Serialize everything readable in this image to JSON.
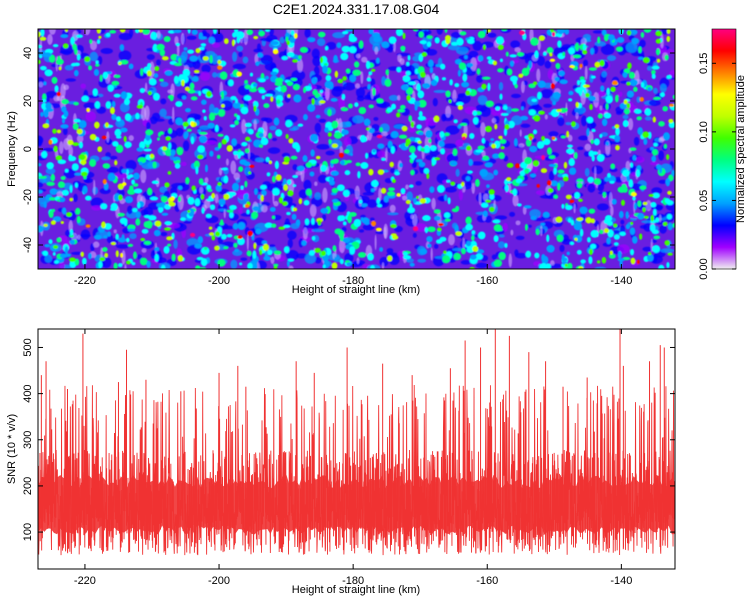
{
  "title": "C2E1.2024.331.17.08.G04",
  "chart_data": [
    {
      "type": "heatmap",
      "xlabel": "Height of straight line (km)",
      "ylabel": "Frequency (Hz)",
      "xlim": [
        -227,
        -132
      ],
      "ylim": [
        -50,
        50
      ],
      "x_ticks": [
        -220,
        -200,
        -180,
        -160,
        -140
      ],
      "y_ticks": [
        -40,
        -20,
        0,
        20,
        40
      ],
      "colorbar": {
        "label": "Normalized spectral amplitude",
        "range": [
          0.0,
          0.175
        ],
        "ticks": [
          0.0,
          0.05,
          0.1,
          0.15
        ],
        "tick_labels": [
          "0.00",
          "0.05",
          "0.10",
          "0.15"
        ],
        "colormap": [
          "#f0f0f0",
          "#a000ff",
          "#0000ff",
          "#00a0ff",
          "#00ffff",
          "#00ff80",
          "#40ff00",
          "#c0ff00",
          "#ffff00",
          "#ff8000",
          "#ff0000",
          "#ff0080"
        ]
      },
      "background_color": "#6a1ee0"
    },
    {
      "type": "line",
      "xlabel": "Height of straight line (km)",
      "ylabel": "SNR (10 * v/v)",
      "xlim": [
        -227,
        -132
      ],
      "ylim": [
        20,
        540
      ],
      "x_ticks": [
        -220,
        -200,
        -180,
        -160,
        -140
      ],
      "y_ticks": [
        100,
        200,
        300,
        400,
        500
      ],
      "color": "#f03232",
      "baseline": 150,
      "typical_range": [
        60,
        300
      ],
      "spikes": [
        {
          "x": -226.5,
          "y": 440
        },
        {
          "x": -225.8,
          "y": 470
        },
        {
          "x": -222.6,
          "y": 410
        },
        {
          "x": -220.3,
          "y": 530
        },
        {
          "x": -215.0,
          "y": 425
        },
        {
          "x": -213.8,
          "y": 495
        },
        {
          "x": -210.9,
          "y": 430
        },
        {
          "x": -205.7,
          "y": 405
        },
        {
          "x": -200.0,
          "y": 445
        },
        {
          "x": -197.2,
          "y": 460
        },
        {
          "x": -196.0,
          "y": 415
        },
        {
          "x": -188.5,
          "y": 470
        },
        {
          "x": -185.8,
          "y": 445
        },
        {
          "x": -180.9,
          "y": 500
        },
        {
          "x": -175.6,
          "y": 465
        },
        {
          "x": -171.2,
          "y": 440
        },
        {
          "x": -165.5,
          "y": 455
        },
        {
          "x": -163.3,
          "y": 515
        },
        {
          "x": -161.0,
          "y": 500
        },
        {
          "x": -158.8,
          "y": 540
        },
        {
          "x": -156.7,
          "y": 525
        },
        {
          "x": -153.8,
          "y": 490
        },
        {
          "x": -151.3,
          "y": 470
        },
        {
          "x": -148.7,
          "y": 415
        },
        {
          "x": -145.1,
          "y": 435
        },
        {
          "x": -140.2,
          "y": 540
        },
        {
          "x": -139.7,
          "y": 460
        },
        {
          "x": -135.8,
          "y": 470
        },
        {
          "x": -134.2,
          "y": 505
        },
        {
          "x": -133.6,
          "y": 500
        }
      ]
    }
  ]
}
